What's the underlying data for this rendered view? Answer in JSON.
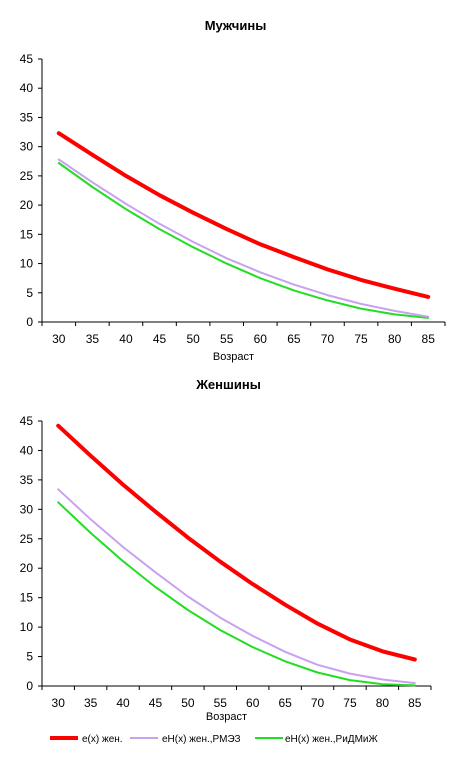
{
  "chart_data": [
    {
      "type": "line",
      "title": "Мужчины",
      "xlabel": "Возраст",
      "ylabel": "",
      "x": [
        30,
        35,
        40,
        45,
        50,
        55,
        60,
        65,
        70,
        75,
        80,
        85
      ],
      "ylim": [
        0,
        45
      ],
      "yticks": [
        0,
        5,
        10,
        15,
        20,
        25,
        30,
        35,
        40,
        45
      ],
      "grid": false,
      "legend": "none",
      "series": [
        {
          "name": "e(x) жен.",
          "color": "#ff0000",
          "width": 4,
          "values": [
            32.3,
            28.6,
            25.0,
            21.7,
            18.7,
            15.9,
            13.3,
            11.1,
            9.0,
            7.2,
            5.7,
            4.3
          ]
        },
        {
          "name": "eH(x) жен.,РМЭЗ",
          "color": "#c8a2f0",
          "width": 2,
          "values": [
            27.8,
            23.9,
            20.2,
            16.8,
            13.7,
            10.9,
            8.5,
            6.4,
            4.6,
            3.1,
            1.9,
            0.9
          ]
        },
        {
          "name": "eH(x) жен.,РиДМиЖ",
          "color": "#22dd22",
          "width": 2,
          "values": [
            27.2,
            23.1,
            19.3,
            15.9,
            12.8,
            10.0,
            7.5,
            5.4,
            3.7,
            2.3,
            1.3,
            0.7
          ]
        }
      ]
    },
    {
      "type": "line",
      "title": "Женшины",
      "xlabel": "Возраст",
      "ylabel": "",
      "x": [
        30,
        35,
        40,
        45,
        50,
        55,
        60,
        65,
        70,
        75,
        80,
        85
      ],
      "ylim": [
        0,
        45
      ],
      "yticks": [
        0,
        5,
        10,
        15,
        20,
        25,
        30,
        35,
        40,
        45
      ],
      "grid": false,
      "legend": "bottom",
      "series": [
        {
          "name": "e(x) жен.",
          "color": "#ff0000",
          "width": 4,
          "values": [
            44.2,
            39.1,
            34.2,
            29.6,
            25.2,
            21.1,
            17.3,
            13.8,
            10.6,
            7.9,
            5.9,
            4.5
          ]
        },
        {
          "name": "eH(x) жен.,РМЭЗ",
          "color": "#c8a2f0",
          "width": 2,
          "values": [
            33.4,
            28.3,
            23.6,
            19.3,
            15.2,
            11.6,
            8.5,
            5.8,
            3.6,
            2.1,
            1.1,
            0.5
          ]
        },
        {
          "name": "eH(x) жен.,РиДМиЖ",
          "color": "#22dd22",
          "width": 2,
          "values": [
            31.2,
            26.0,
            21.2,
            16.8,
            12.9,
            9.5,
            6.6,
            4.2,
            2.3,
            1.0,
            0.3,
            0.1
          ]
        }
      ]
    }
  ]
}
